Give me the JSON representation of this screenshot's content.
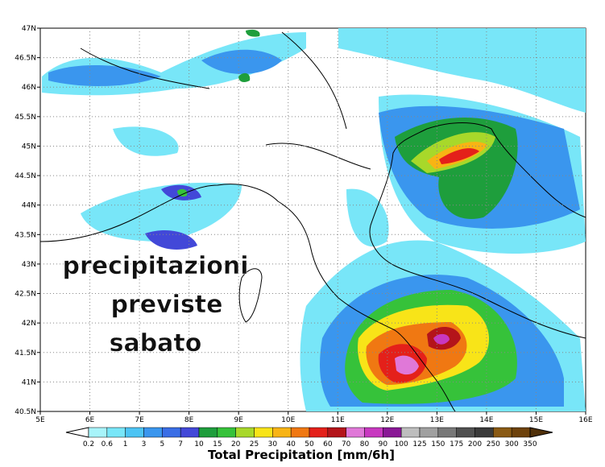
{
  "map": {
    "lat_labels": [
      "47N",
      "46.5N",
      "46N",
      "45.5N",
      "45N",
      "44.5N",
      "44N",
      "43.5N",
      "43N",
      "42.5N",
      "42N",
      "41.5N",
      "41N",
      "40.5N"
    ],
    "lon_labels": [
      "5E",
      "6E",
      "7E",
      "8E",
      "9E",
      "10E",
      "11E",
      "12E",
      "13E",
      "14E",
      "15E",
      "16E"
    ],
    "overlay_text": [
      "precipitazioni",
      "previste",
      "sabato"
    ],
    "colorbar": {
      "labels": [
        "0.2",
        "0.6",
        "1",
        "3",
        "5",
        "7",
        "10",
        "15",
        "20",
        "25",
        "30",
        "40",
        "50",
        "60",
        "70",
        "80",
        "90",
        "100",
        "125",
        "150",
        "175",
        "200",
        "250",
        "300",
        "350"
      ],
      "colors": [
        "#ffffff",
        "#a8f4fa",
        "#78e6f8",
        "#4cc4f4",
        "#3a96ee",
        "#3a6ee6",
        "#4248d8",
        "#1e9e3c",
        "#36c23a",
        "#a8d82a",
        "#f8e418",
        "#f8b414",
        "#f07812",
        "#e4201a",
        "#b4141a",
        "#e078d8",
        "#c838c0",
        "#8a1896",
        "#bebebe",
        "#a0a0a0",
        "#787878",
        "#505050",
        "#3a3a3a",
        "#8a5a14",
        "#6e420c",
        "#50300a"
      ],
      "title": "Total Precipitation [mm/6h]"
    }
  }
}
